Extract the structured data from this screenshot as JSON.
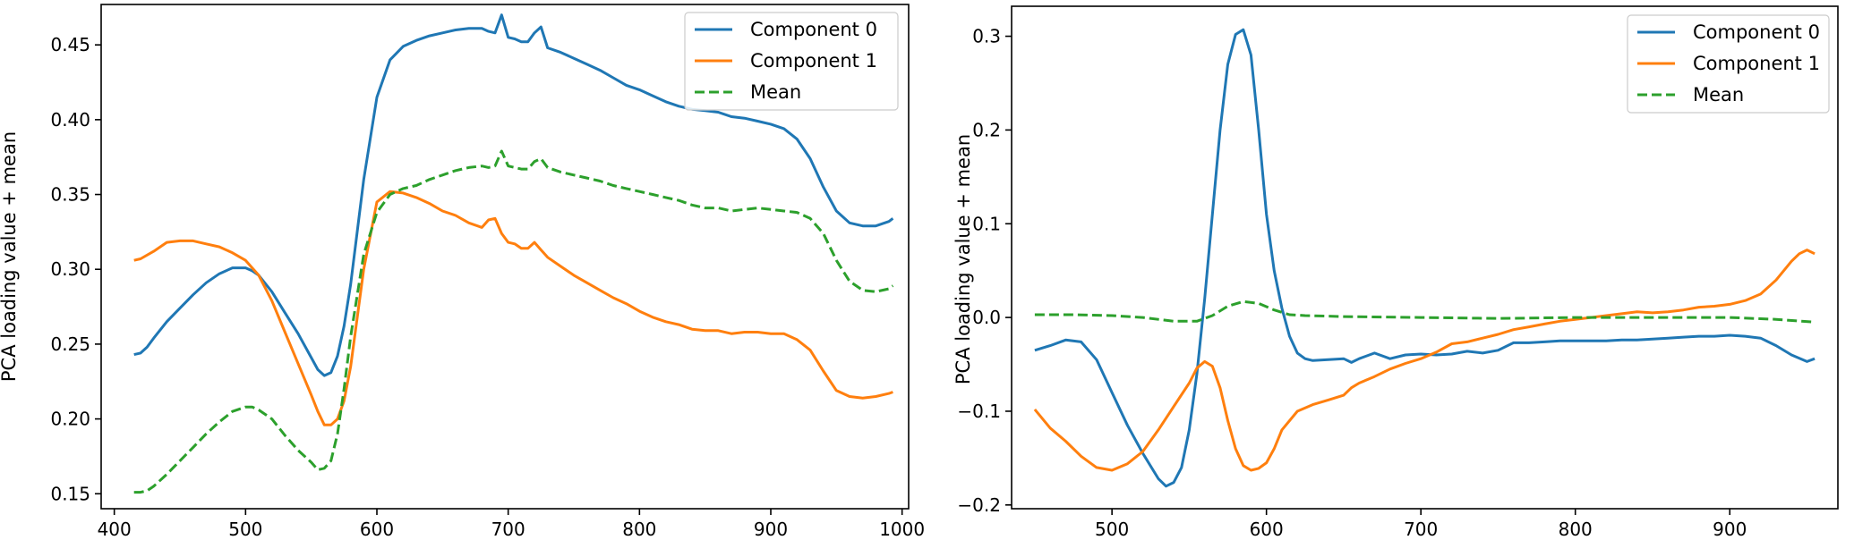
{
  "colors": {
    "component0": "#1f77b4",
    "component1": "#ff7f0e",
    "mean": "#2ca02c"
  },
  "chart_data": [
    {
      "type": "line",
      "title": "",
      "xlabel": "",
      "ylabel": "PCA loading value + mean",
      "xlim": [
        390,
        1005
      ],
      "ylim": [
        0.14,
        0.477
      ],
      "xticks": [
        400,
        500,
        600,
        700,
        800,
        900,
        1000
      ],
      "yticks": [
        0.15,
        0.2,
        0.25,
        0.3,
        0.35,
        0.4,
        0.45
      ],
      "ytick_labels": [
        "0.15",
        "0.20",
        "0.25",
        "0.30",
        "0.35",
        "0.40",
        "0.45"
      ],
      "legend": "top-right",
      "series": [
        {
          "name": "Component 0",
          "style": "solid",
          "color": "#1f77b4",
          "x": [
            415,
            420,
            425,
            430,
            440,
            450,
            460,
            470,
            480,
            490,
            500,
            505,
            510,
            520,
            530,
            540,
            550,
            555,
            560,
            565,
            570,
            575,
            580,
            590,
            600,
            610,
            620,
            630,
            640,
            650,
            660,
            670,
            680,
            685,
            690,
            695,
            700,
            705,
            710,
            715,
            720,
            725,
            730,
            740,
            750,
            760,
            770,
            780,
            790,
            800,
            810,
            820,
            830,
            840,
            850,
            860,
            870,
            880,
            890,
            900,
            910,
            920,
            930,
            940,
            950,
            960,
            970,
            980,
            990,
            993
          ],
          "y": [
            0.243,
            0.244,
            0.248,
            0.254,
            0.265,
            0.274,
            0.283,
            0.291,
            0.297,
            0.301,
            0.301,
            0.299,
            0.296,
            0.285,
            0.271,
            0.257,
            0.241,
            0.233,
            0.229,
            0.231,
            0.242,
            0.262,
            0.29,
            0.36,
            0.415,
            0.44,
            0.449,
            0.453,
            0.456,
            0.458,
            0.46,
            0.461,
            0.461,
            0.459,
            0.458,
            0.47,
            0.455,
            0.454,
            0.452,
            0.452,
            0.458,
            0.462,
            0.448,
            0.445,
            0.441,
            0.437,
            0.433,
            0.428,
            0.423,
            0.42,
            0.416,
            0.412,
            0.409,
            0.407,
            0.406,
            0.405,
            0.402,
            0.401,
            0.399,
            0.397,
            0.394,
            0.387,
            0.374,
            0.355,
            0.339,
            0.331,
            0.329,
            0.329,
            0.332,
            0.334
          ]
        },
        {
          "name": "Component 1",
          "style": "solid",
          "color": "#ff7f0e",
          "x": [
            415,
            420,
            430,
            440,
            450,
            460,
            470,
            480,
            490,
            500,
            510,
            520,
            530,
            540,
            550,
            555,
            560,
            565,
            570,
            575,
            580,
            590,
            600,
            610,
            620,
            630,
            640,
            650,
            660,
            670,
            680,
            685,
            690,
            695,
            700,
            705,
            710,
            715,
            720,
            725,
            730,
            740,
            750,
            760,
            770,
            780,
            790,
            800,
            810,
            820,
            830,
            840,
            850,
            860,
            870,
            880,
            890,
            900,
            910,
            920,
            930,
            940,
            950,
            960,
            970,
            980,
            990,
            993
          ],
          "y": [
            0.306,
            0.307,
            0.312,
            0.318,
            0.319,
            0.319,
            0.317,
            0.315,
            0.311,
            0.306,
            0.296,
            0.279,
            0.258,
            0.237,
            0.216,
            0.205,
            0.196,
            0.196,
            0.2,
            0.212,
            0.235,
            0.3,
            0.345,
            0.352,
            0.351,
            0.348,
            0.344,
            0.339,
            0.336,
            0.331,
            0.328,
            0.333,
            0.334,
            0.324,
            0.318,
            0.317,
            0.314,
            0.314,
            0.318,
            0.313,
            0.308,
            0.302,
            0.296,
            0.291,
            0.286,
            0.281,
            0.277,
            0.272,
            0.268,
            0.265,
            0.263,
            0.26,
            0.259,
            0.259,
            0.257,
            0.258,
            0.258,
            0.257,
            0.257,
            0.253,
            0.246,
            0.232,
            0.219,
            0.215,
            0.214,
            0.215,
            0.217,
            0.218
          ]
        },
        {
          "name": "Mean",
          "style": "dashed",
          "color": "#2ca02c",
          "x": [
            415,
            420,
            425,
            430,
            440,
            450,
            460,
            470,
            480,
            490,
            500,
            505,
            510,
            520,
            530,
            540,
            550,
            555,
            560,
            565,
            570,
            575,
            580,
            590,
            600,
            610,
            620,
            630,
            640,
            650,
            660,
            670,
            680,
            685,
            690,
            695,
            700,
            705,
            710,
            715,
            720,
            725,
            730,
            740,
            750,
            760,
            770,
            780,
            790,
            800,
            810,
            820,
            830,
            840,
            850,
            860,
            870,
            880,
            890,
            900,
            910,
            920,
            930,
            940,
            950,
            960,
            970,
            980,
            990,
            993
          ],
          "y": [
            0.151,
            0.151,
            0.152,
            0.155,
            0.163,
            0.172,
            0.181,
            0.19,
            0.198,
            0.205,
            0.208,
            0.208,
            0.206,
            0.2,
            0.189,
            0.179,
            0.171,
            0.166,
            0.167,
            0.172,
            0.19,
            0.22,
            0.255,
            0.31,
            0.338,
            0.35,
            0.354,
            0.356,
            0.36,
            0.363,
            0.366,
            0.368,
            0.369,
            0.368,
            0.369,
            0.379,
            0.369,
            0.368,
            0.367,
            0.367,
            0.372,
            0.374,
            0.368,
            0.365,
            0.363,
            0.361,
            0.359,
            0.356,
            0.354,
            0.352,
            0.35,
            0.348,
            0.346,
            0.343,
            0.341,
            0.341,
            0.339,
            0.34,
            0.341,
            0.34,
            0.339,
            0.338,
            0.334,
            0.324,
            0.306,
            0.292,
            0.286,
            0.285,
            0.287,
            0.289
          ]
        }
      ]
    },
    {
      "type": "line",
      "title": "",
      "xlabel": "",
      "ylabel": "PCA loading value + mean",
      "xlim": [
        435,
        970
      ],
      "ylim": [
        -0.204,
        0.332
      ],
      "xticks": [
        500,
        600,
        700,
        800,
        900
      ],
      "yticks": [
        -0.2,
        -0.1,
        0.0,
        0.1,
        0.2,
        0.3
      ],
      "ytick_labels": [
        "−0.2",
        "−0.1",
        "0.0",
        "0.1",
        "0.2",
        "0.3"
      ],
      "legend": "top-right",
      "series": [
        {
          "name": "Component 0",
          "style": "solid",
          "color": "#1f77b4",
          "x": [
            450,
            460,
            470,
            480,
            490,
            500,
            510,
            520,
            530,
            535,
            540,
            545,
            550,
            555,
            560,
            565,
            570,
            575,
            580,
            585,
            590,
            595,
            600,
            605,
            610,
            615,
            620,
            625,
            630,
            640,
            650,
            655,
            660,
            670,
            680,
            690,
            700,
            710,
            720,
            730,
            740,
            750,
            760,
            770,
            780,
            790,
            800,
            810,
            820,
            830,
            840,
            850,
            860,
            870,
            880,
            890,
            900,
            910,
            920,
            930,
            940,
            950,
            955
          ],
          "y": [
            -0.035,
            -0.03,
            -0.024,
            -0.026,
            -0.045,
            -0.08,
            -0.115,
            -0.145,
            -0.172,
            -0.18,
            -0.176,
            -0.16,
            -0.12,
            -0.06,
            0.02,
            0.11,
            0.2,
            0.27,
            0.302,
            0.307,
            0.28,
            0.2,
            0.11,
            0.05,
            0.01,
            -0.02,
            -0.038,
            -0.044,
            -0.046,
            -0.045,
            -0.044,
            -0.048,
            -0.044,
            -0.038,
            -0.044,
            -0.04,
            -0.039,
            -0.04,
            -0.039,
            -0.036,
            -0.038,
            -0.035,
            -0.027,
            -0.027,
            -0.026,
            -0.025,
            -0.025,
            -0.025,
            -0.025,
            -0.024,
            -0.024,
            -0.023,
            -0.022,
            -0.021,
            -0.02,
            -0.02,
            -0.019,
            -0.02,
            -0.022,
            -0.03,
            -0.04,
            -0.047,
            -0.044
          ]
        },
        {
          "name": "Component 1",
          "style": "solid",
          "color": "#ff7f0e",
          "x": [
            450,
            460,
            470,
            480,
            490,
            500,
            510,
            520,
            530,
            540,
            550,
            555,
            560,
            565,
            570,
            575,
            580,
            585,
            590,
            595,
            600,
            605,
            610,
            620,
            630,
            640,
            650,
            655,
            660,
            670,
            680,
            690,
            700,
            710,
            720,
            730,
            740,
            750,
            760,
            770,
            780,
            790,
            800,
            810,
            820,
            830,
            840,
            850,
            860,
            870,
            880,
            890,
            900,
            910,
            920,
            930,
            940,
            945,
            950,
            955
          ],
          "y": [
            -0.098,
            -0.118,
            -0.132,
            -0.148,
            -0.16,
            -0.163,
            -0.156,
            -0.143,
            -0.12,
            -0.095,
            -0.07,
            -0.054,
            -0.047,
            -0.052,
            -0.075,
            -0.11,
            -0.14,
            -0.158,
            -0.163,
            -0.161,
            -0.155,
            -0.14,
            -0.12,
            -0.1,
            -0.093,
            -0.088,
            -0.083,
            -0.075,
            -0.07,
            -0.063,
            -0.055,
            -0.049,
            -0.044,
            -0.037,
            -0.028,
            -0.026,
            -0.022,
            -0.018,
            -0.013,
            -0.01,
            -0.007,
            -0.004,
            -0.002,
            0.0,
            0.002,
            0.004,
            0.006,
            0.005,
            0.006,
            0.008,
            0.011,
            0.012,
            0.014,
            0.018,
            0.025,
            0.04,
            0.06,
            0.068,
            0.072,
            0.068
          ]
        },
        {
          "name": "Mean",
          "style": "dashed",
          "color": "#2ca02c",
          "x": [
            450,
            475,
            500,
            520,
            540,
            555,
            565,
            575,
            585,
            595,
            605,
            615,
            625,
            650,
            700,
            750,
            800,
            850,
            900,
            930,
            955
          ],
          "y": [
            0.003,
            0.003,
            0.002,
            0.0,
            -0.004,
            -0.004,
            0.002,
            0.012,
            0.017,
            0.015,
            0.008,
            0.003,
            0.002,
            0.001,
            0.0,
            -0.001,
            0.0,
            0.0,
            0.0,
            -0.002,
            -0.005
          ]
        }
      ]
    }
  ]
}
